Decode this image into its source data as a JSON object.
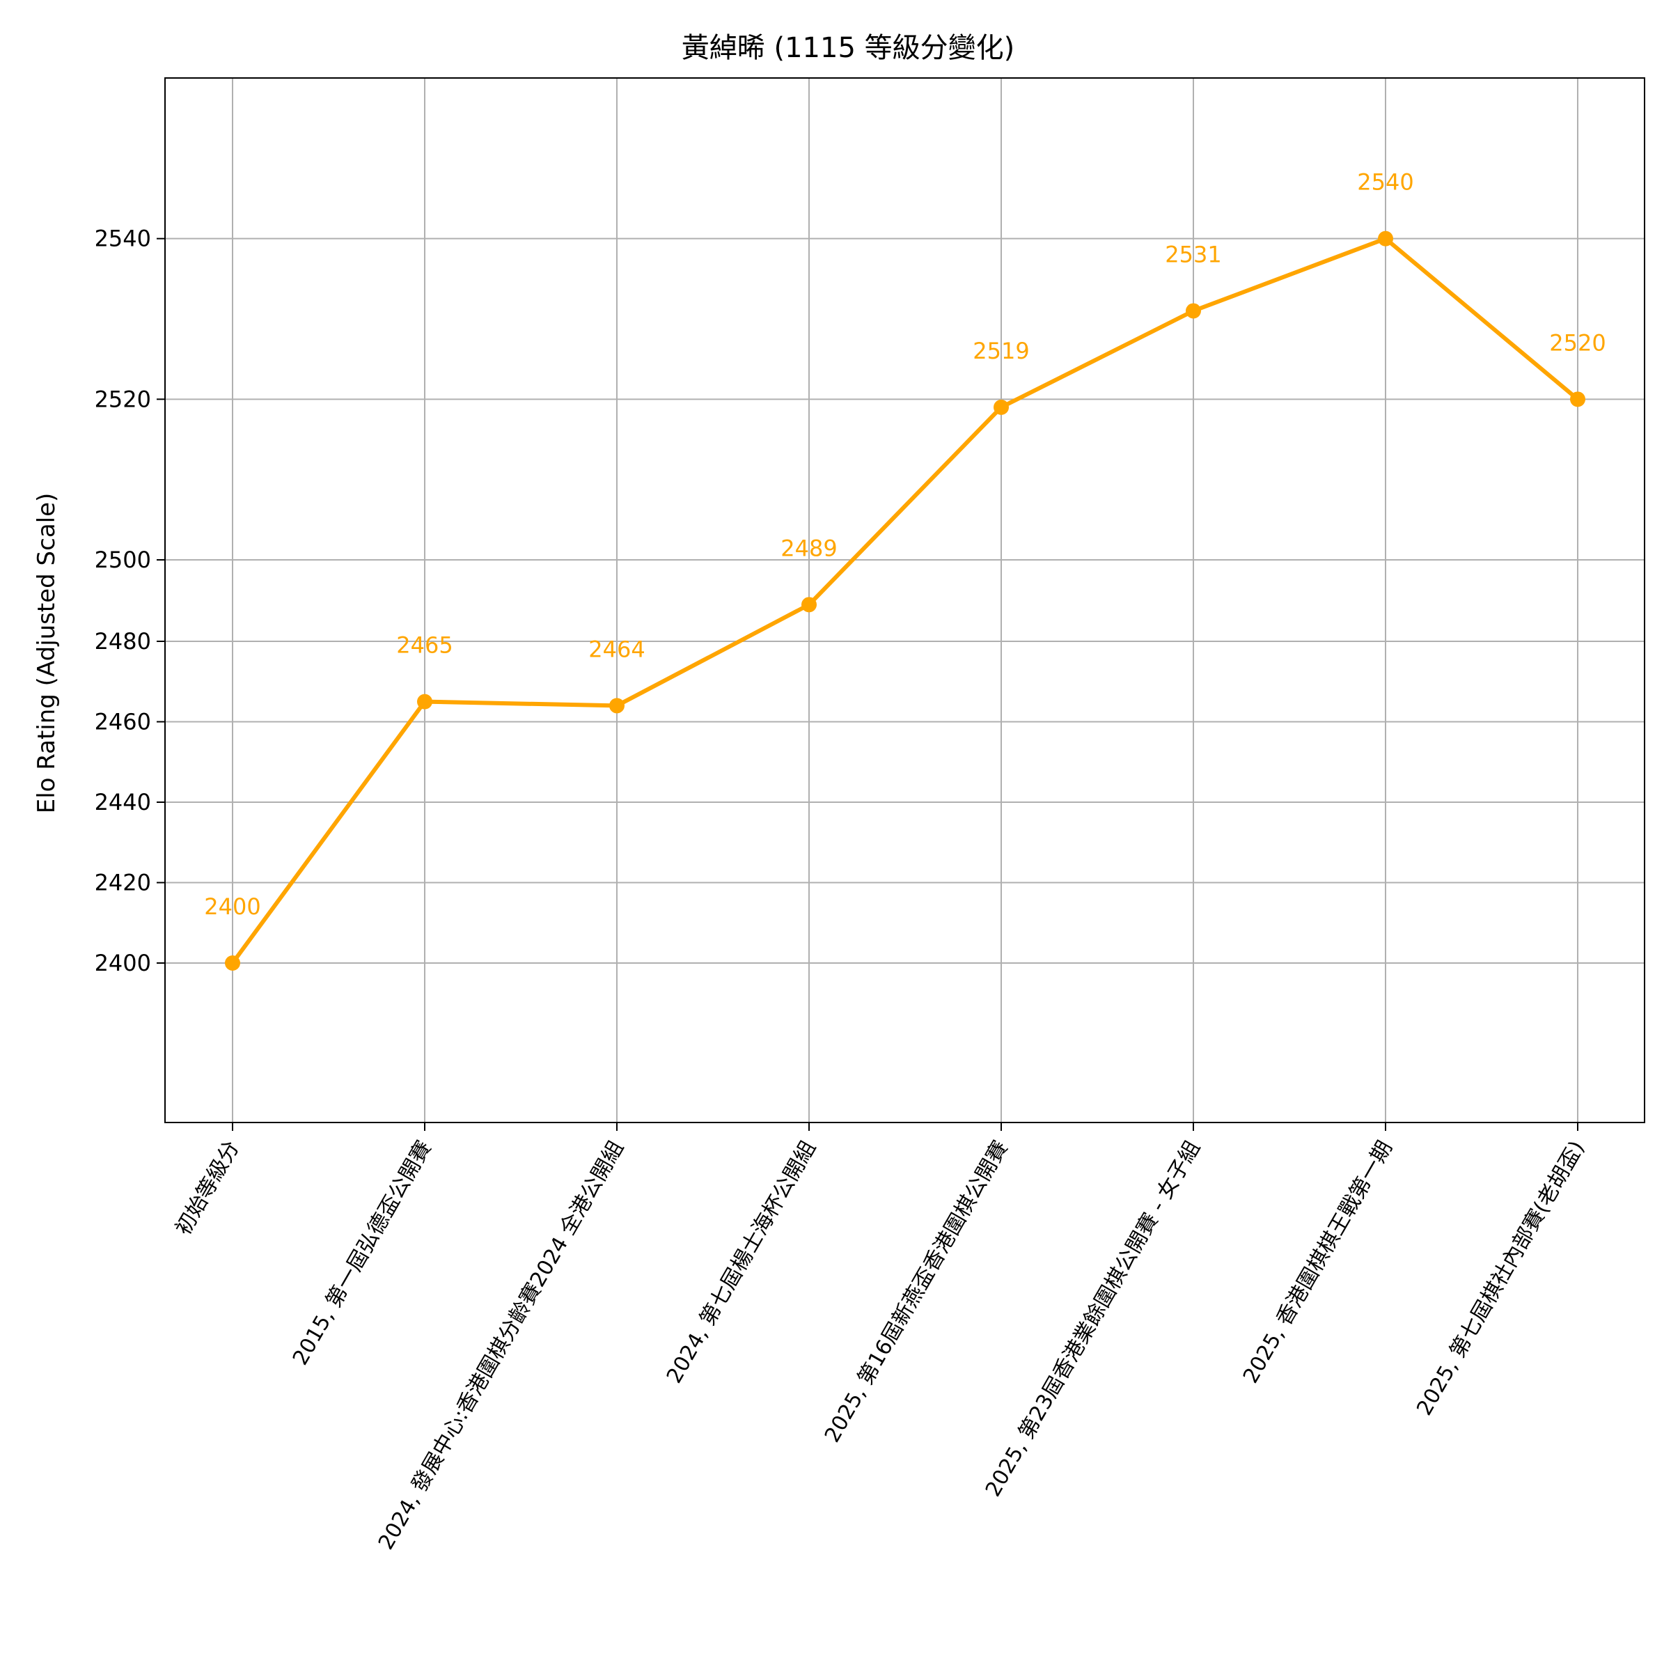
{
  "chart_data": {
    "type": "line",
    "title": "黃綽晞 (1115 等級分變化)",
    "xlabel": "",
    "ylabel": "Elo Rating (Adjusted Scale)",
    "categories": [
      "初始等級分",
      "2015, 第一屆弘德盃公開賽",
      "2024, 發展中心:香港圍棋分齡賽2024 全港公開組",
      "2024, 第七屆楊士海杯公開組",
      "2025, 第16屆新燕盃香港圍棋公開賽",
      "2025, 第23屆香港業餘圍棋公開賽 - 女子組",
      "2025, 香港圍棋棋王戰第一期",
      "2025, 第七屆棋社內部賽(老胡盃)"
    ],
    "values": [
      2400,
      2465,
      2464,
      2489,
      2519,
      2531,
      2540,
      2520
    ],
    "data_labels": [
      "2400",
      "2465",
      "2464",
      "2489",
      "2519",
      "2531",
      "2540",
      "2520"
    ],
    "y_ticks": [
      2400,
      2420,
      2440,
      2460,
      2480,
      2500,
      2520,
      2540
    ],
    "y_scale": "nonlinear (adjusted)",
    "grid": true,
    "legend": "none",
    "color": "#FFA500"
  }
}
